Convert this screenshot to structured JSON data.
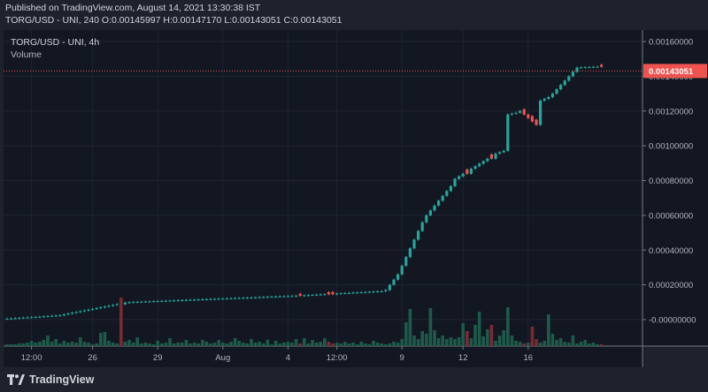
{
  "header": {
    "published": "Published on TradingView.com, August 14, 2021 13:30:38 IST",
    "symbol_line": "TORG/USD - UNI, 240",
    "ohlc": {
      "o_label": "O:",
      "o": "0.00145997",
      "h_label": "H:",
      "h": "0.00147170",
      "l_label": "L:",
      "l": "0.00143051",
      "c_label": "C:",
      "c": "0.00143051"
    }
  },
  "legend": {
    "title": "TORG/USD - UNI, 4h",
    "volume": "Volume"
  },
  "footer": {
    "brand": "TradingView",
    "logo_icon": "tradingview-logo-icon"
  },
  "colors": {
    "up": "#26a69a",
    "down": "#ef5350",
    "vol_up": "#1e5a4a",
    "vol_down": "#7a2a34",
    "price_line": "#ef5350"
  },
  "chart_data": {
    "type": "candlestick",
    "ylim": [
      -0.0001,
      0.00165
    ],
    "y_ticks": [
      "0.00160000",
      "0.00140000",
      "0.00120000",
      "0.00100000",
      "0.00080000",
      "0.00060000",
      "0.00040000",
      "0.00020000",
      "-0.00000000"
    ],
    "y_tick_values": [
      0.0016,
      0.0014,
      0.0012,
      0.001,
      0.0008,
      0.0006,
      0.0004,
      0.0002,
      0.0
    ],
    "x_ticks": [
      "12:00",
      "26",
      "29",
      "Aug",
      "4",
      "12:00",
      "9",
      "12",
      "16"
    ],
    "x_tick_bars": [
      6,
      21,
      37,
      53,
      69,
      81,
      97,
      112,
      128
    ],
    "last_price": "0.00143051",
    "last_price_value": 0.00143051,
    "candles": [
      [
        5e-06,
        7e-06,
        3e-06,
        6e-06
      ],
      [
        6e-06,
        8e-06,
        4e-06,
        7e-06
      ],
      [
        7e-06,
        9e-06,
        5e-06,
        8e-06
      ],
      [
        8e-06,
        1e-05,
        6e-06,
        9e-06
      ],
      [
        9e-06,
        1.2e-05,
        7e-06,
        1.1e-05
      ],
      [
        1.1e-05,
        1.4e-05,
        9e-06,
        1.3e-05
      ],
      [
        1.3e-05,
        1.6e-05,
        1e-05,
        1.5e-05
      ],
      [
        1.5e-05,
        2e-05,
        1.2e-05,
        1.8e-05
      ],
      [
        1.8e-05,
        2.4e-05,
        1.5e-05,
        2.2e-05
      ],
      [
        2.2e-05,
        3e-05,
        2e-05,
        2.8e-05
      ],
      [
        2.8e-05,
        3.6e-05,
        2.5e-05,
        3.4e-05
      ],
      [
        3.4e-05,
        4.5e-05,
        3e-05,
        4.2e-05
      ],
      [
        4.2e-05,
        5.5e-05,
        3.8e-05,
        5.2e-05
      ],
      [
        5.2e-05,
        6.2e-05,
        4.5e-05,
        5.8e-05
      ],
      [
        5.8e-05,
        6.8e-05,
        5e-05,
        6.3e-05
      ],
      [
        6.3e-05,
        7.2e-05,
        5.5e-05,
        6.8e-05
      ],
      [
        6.8e-05,
        7.8e-05,
        6e-05,
        7.4e-05
      ],
      [
        7.4e-05,
        8.2e-05,
        6.6e-05,
        7.9e-05
      ],
      [
        7.9e-05,
        8.8e-05,
        7.2e-05,
        8.4e-05
      ],
      [
        8.4e-05,
        9.3e-05,
        7.8e-05,
        8.9e-05
      ],
      [
        8.9e-05,
        0.0001,
        8.2e-05,
        9.5e-05
      ],
      [
        9.5e-05,
        0.000108,
        8.8e-05,
        0.000102
      ],
      [
        0.000102,
        0.000115,
        9.5e-05,
        0.000108
      ],
      [
        0.000108,
        0.000122,
        0.0001,
        0.000113
      ],
      [
        0.000113,
        0.000125,
        0.000105,
        0.000118
      ],
      [
        0.000118,
        0.00013,
        0.00011,
        0.000122
      ],
      [
        0.000122,
        0.00014,
        0.000115,
        0.000105
      ],
      [
        0.000105,
        0.000118,
        9.8e-05,
        0.000112
      ],
      [
        0.000112,
        0.000122,
        0.000105,
        0.000118
      ],
      [
        0.000118,
        0.000126,
        0.00011,
        0.000121
      ],
      [
        0.000121,
        0.000128,
        0.000114,
        0.000124
      ],
      [
        0.000124,
        0.000131,
        0.000117,
        0.000127
      ],
      [
        0.000127,
        0.000133,
        0.00012,
        0.00013
      ],
      [
        0.00013,
        0.000136,
        0.000123,
        0.000132
      ],
      [
        0.000132,
        0.000138,
        0.000126,
        0.000135
      ],
      [
        0.000135,
        0.00014,
        0.000129,
        0.000137
      ],
      [
        0.000137,
        0.000142,
        0.000131,
        0.000139
      ],
      [
        0.000139,
        0.000144,
        0.000133,
        0.000141
      ],
      [
        0.000141,
        0.000146,
        0.000135,
        0.000143
      ],
      [
        0.000143,
        0.000148,
        0.000137,
        0.000145
      ],
      [
        0.000145,
        0.00015,
        0.000139,
        0.000147
      ],
      [
        0.000147,
        0.000152,
        0.000141,
        0.000149
      ],
      [
        0.000149,
        0.000154,
        0.000143,
        0.000151
      ],
      [
        0.000151,
        0.000156,
        0.000145,
        0.000153
      ],
      [
        0.000153,
        0.000158,
        0.000147,
        0.000155
      ],
      [
        0.000155,
        0.00016,
        0.000149,
        0.000157
      ],
      [
        0.000157,
        0.000162,
        0.000151,
        0.000159
      ],
      [
        0.000159,
        0.000164,
        0.000153,
        0.000161
      ],
      [
        0.000161,
        0.000166,
        0.000155,
        0.000163
      ],
      [
        0.000163,
        0.000168,
        0.000157,
        0.000165
      ],
      [
        0.000165,
        0.00017,
        0.000159,
        0.000167
      ],
      [
        0.000167,
        0.000172,
        0.000161,
        0.000169
      ],
      [
        0.000169,
        0.000174,
        0.000163,
        0.000171
      ],
      [
        0.000171,
        0.000176,
        0.000165,
        0.000173
      ],
      [
        0.000173,
        0.000178,
        0.000167,
        0.000175
      ],
      [
        0.000175,
        0.00018,
        0.000169,
        0.000177
      ],
      [
        0.000177,
        0.000182,
        0.000171,
        0.000179
      ],
      [
        0.000179,
        0.000184,
        0.000173,
        0.000181
      ],
      [
        0.000181,
        0.000186,
        0.000175,
        0.000183
      ],
      [
        0.000183,
        0.000188,
        0.000177,
        0.000185
      ],
      [
        0.000185,
        0.00019,
        0.000179,
        0.000187
      ],
      [
        0.000187,
        0.000192,
        0.000181,
        0.000189
      ],
      [
        0.000189,
        0.000194,
        0.000183,
        0.000191
      ],
      [
        0.000191,
        0.000196,
        0.000185,
        0.000193
      ],
      [
        0.000193,
        0.000198,
        0.000187,
        0.000195
      ],
      [
        0.000195,
        0.0002,
        0.000189,
        0.000197
      ],
      [
        0.000197,
        0.000202,
        0.000191,
        0.000199
      ],
      [
        0.000199,
        0.000204,
        0.000193,
        0.000201
      ],
      [
        0.000201,
        0.000206,
        0.000195,
        0.000203
      ],
      [
        0.000203,
        0.000208,
        0.000197,
        0.000205
      ],
      [
        0.000205,
        0.00021,
        0.000199,
        0.000207
      ],
      [
        0.000207,
        0.000212,
        0.000201,
        0.000209
      ],
      [
        0.000209,
        0.000214,
        0.000203,
        0.000211
      ],
      [
        0.000211,
        0.000216,
        0.000205,
        0.000213
      ],
      [
        0.000213,
        0.000218,
        0.000207,
        0.000215
      ],
      [
        0.000215,
        0.00022,
        0.000209,
        0.000217
      ],
      [
        0.000217,
        0.000222,
        0.000211,
        0.000219
      ],
      [
        0.000219,
        0.000224,
        0.000213,
        0.000221
      ],
      [
        0.000221,
        0.000226,
        0.000215,
        0.000223
      ],
      [
        0.000223,
        0.000228,
        0.000217,
        0.000225
      ],
      [
        0.000225,
        0.00023,
        0.000219,
        0.000227
      ],
      [
        0.000227,
        0.000232,
        0.000221,
        0.000229
      ],
      [
        0.000229,
        0.000234,
        0.000223,
        0.000231
      ],
      [
        0.000231,
        0.000236,
        0.000225,
        0.000233
      ],
      [
        0.000233,
        0.000238,
        0.000227,
        0.000235
      ],
      [
        0.000235,
        0.00024,
        0.000229,
        0.000237
      ],
      [
        0.000237,
        0.000242,
        0.000231,
        0.000239
      ],
      [
        0.000239,
        0.000244,
        0.000233,
        0.000241
      ],
      [
        0.000241,
        0.000246,
        0.000235,
        0.000243
      ],
      [
        0.000243,
        0.000248,
        0.000237,
        0.000245
      ],
      [
        0.000245,
        0.00025,
        0.000239,
        0.000247
      ],
      [
        0.000247,
        0.000252,
        0.000241,
        0.000249
      ],
      [
        0.000249,
        0.000254,
        0.000243,
        0.000251
      ],
      [
        0.000251,
        0.000256,
        0.000245,
        0.000253
      ],
      [
        0.000253,
        0.000258,
        0.000247,
        0.000255
      ],
      [
        0.000255,
        0.00026,
        0.000249,
        0.000257
      ]
    ],
    "candles_mid": [
      [
        0.000258,
        0.000264,
        0.000252,
        0.00026
      ],
      [
        0.00026,
        0.000266,
        0.000254,
        0.000262
      ],
      [
        0.000262,
        0.000268,
        0.000256,
        0.000264
      ],
      [
        0.000264,
        0.00027,
        0.000258,
        0.000266
      ],
      [
        0.000266,
        0.000272,
        0.00026,
        0.000268
      ],
      [
        0.000268,
        0.000274,
        0.000262,
        0.00027
      ],
      [
        0.00027,
        0.000276,
        0.000264,
        0.000272
      ],
      [
        0.000272,
        0.000278,
        0.000266,
        0.000274
      ]
    ]
  }
}
